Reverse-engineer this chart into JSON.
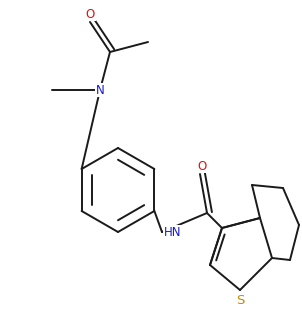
{
  "bg_color": "#ffffff",
  "line_color": "#1a1a1a",
  "atom_colors": {
    "N": "#1a1acc",
    "O": "#cc1a1a",
    "S": "#cc8800",
    "C": "#1a1a1a"
  },
  "font_size": 8.5,
  "bond_width": 1.4,
  "fig_w": 3.02,
  "fig_h": 3.22,
  "dpi": 100
}
